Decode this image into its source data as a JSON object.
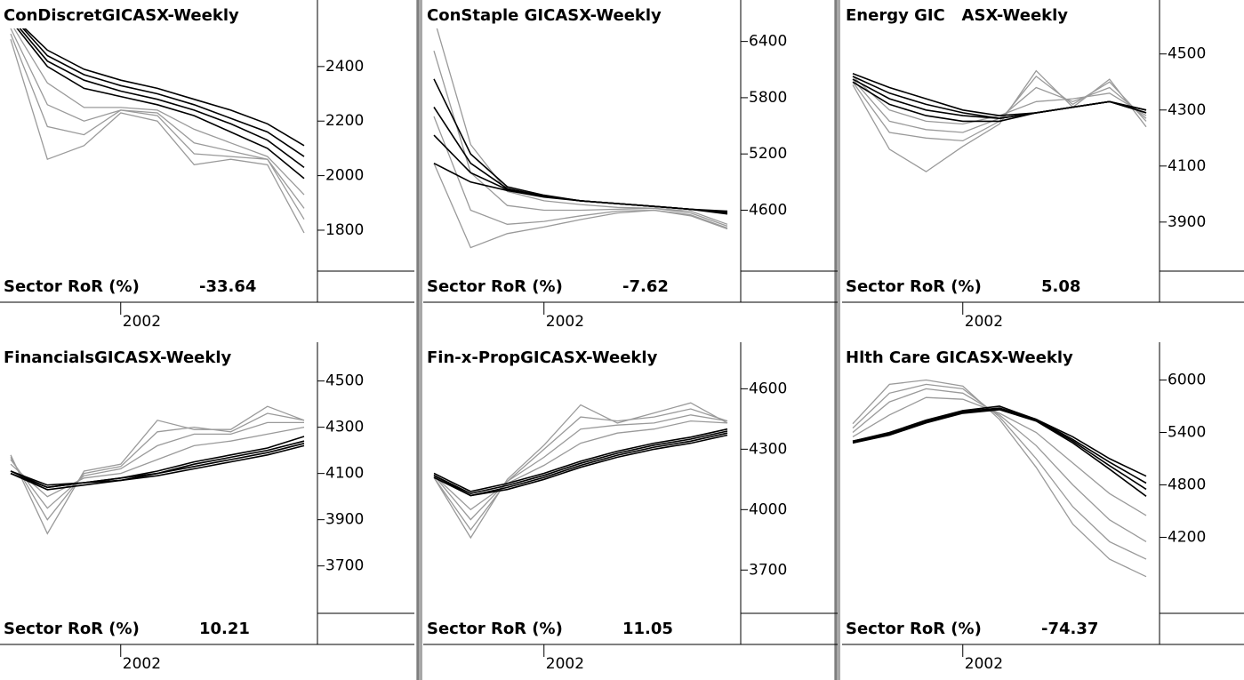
{
  "chart_data": [
    {
      "type": "line",
      "title": "ConDiscretGICASX-Weekly",
      "annotation": "Sector RoR (%)",
      "annotation_value": -33.64,
      "categories": [
        null,
        null,
        null,
        "2002",
        null,
        null,
        null,
        null,
        null
      ],
      "ylim": [
        1650,
        2595
      ],
      "yticks": [
        2400,
        2200,
        2000,
        1800
      ],
      "series": [
        {
          "color": "#9a9a9a",
          "values": [
            2500,
            2060,
            2110,
            2230,
            2200,
            2040,
            2060,
            2040,
            1790
          ]
        },
        {
          "color": "#9a9a9a",
          "values": [
            2520,
            2180,
            2150,
            2240,
            2220,
            2080,
            2070,
            2060,
            1840
          ]
        },
        {
          "color": "#9a9a9a",
          "values": [
            2540,
            2260,
            2200,
            2240,
            2230,
            2120,
            2090,
            2060,
            1880
          ]
        },
        {
          "color": "#9a9a9a",
          "values": [
            2560,
            2340,
            2250,
            2250,
            2240,
            2170,
            2120,
            2070,
            1930
          ]
        },
        {
          "color": "#000000",
          "values": [
            2570,
            2400,
            2320,
            2290,
            2260,
            2220,
            2160,
            2100,
            1990
          ]
        },
        {
          "color": "#000000",
          "values": [
            2580,
            2420,
            2350,
            2310,
            2280,
            2240,
            2190,
            2130,
            2030
          ]
        },
        {
          "color": "#000000",
          "values": [
            2590,
            2440,
            2370,
            2330,
            2300,
            2260,
            2210,
            2160,
            2070
          ]
        },
        {
          "color": "#000000",
          "values": [
            2590,
            2460,
            2390,
            2350,
            2320,
            2280,
            2240,
            2190,
            2110
          ]
        }
      ]
    },
    {
      "type": "line",
      "title": "ConStaple GICASX-Weekly",
      "annotation": "Sector RoR (%)",
      "annotation_value": -7.62,
      "categories": [
        null,
        null,
        null,
        "2002",
        null,
        null,
        null,
        null,
        null
      ],
      "ylim": [
        3950,
        6700
      ],
      "yticks": [
        6400,
        5800,
        5200,
        4600
      ],
      "series": [
        {
          "color": "#9a9a9a",
          "values": [
            5100,
            4200,
            4350,
            4420,
            4500,
            4570,
            4600,
            4540,
            4400
          ]
        },
        {
          "color": "#9a9a9a",
          "values": [
            5600,
            4600,
            4450,
            4480,
            4540,
            4590,
            4600,
            4550,
            4410
          ]
        },
        {
          "color": "#9a9a9a",
          "values": [
            6300,
            5000,
            4650,
            4600,
            4600,
            4610,
            4620,
            4570,
            4430
          ]
        },
        {
          "color": "#9a9a9a",
          "values": [
            6650,
            5300,
            4800,
            4700,
            4660,
            4630,
            4620,
            4590,
            4450
          ]
        },
        {
          "color": "#000000",
          "values": [
            5100,
            4900,
            4810,
            4740,
            4700,
            4670,
            4640,
            4610,
            4590
          ]
        },
        {
          "color": "#000000",
          "values": [
            5400,
            5000,
            4820,
            4750,
            4700,
            4670,
            4640,
            4610,
            4580
          ]
        },
        {
          "color": "#000000",
          "values": [
            5700,
            5100,
            4830,
            4750,
            4700,
            4670,
            4640,
            4610,
            4570
          ]
        },
        {
          "color": "#000000",
          "values": [
            6000,
            5200,
            4850,
            4760,
            4700,
            4670,
            4640,
            4610,
            4560
          ]
        }
      ]
    },
    {
      "type": "line",
      "title": "Energy GIC   ASX-Weekly",
      "annotation": "Sector RoR (%)",
      "annotation_value": 5.08,
      "categories": [
        null,
        null,
        null,
        "2002",
        null,
        null,
        null,
        null,
        null
      ],
      "ylim": [
        3725,
        4645
      ],
      "yticks": [
        4500,
        4300,
        4100,
        3900
      ],
      "series": [
        {
          "color": "#9a9a9a",
          "values": [
            4390,
            4160,
            4080,
            4170,
            4250,
            4440,
            4310,
            4410,
            4240
          ]
        },
        {
          "color": "#9a9a9a",
          "values": [
            4400,
            4220,
            4200,
            4190,
            4260,
            4420,
            4320,
            4400,
            4260
          ]
        },
        {
          "color": "#9a9a9a",
          "values": [
            4410,
            4260,
            4230,
            4220,
            4270,
            4380,
            4330,
            4380,
            4270
          ]
        },
        {
          "color": "#9a9a9a",
          "values": [
            4420,
            4300,
            4260,
            4250,
            4280,
            4330,
            4340,
            4360,
            4280
          ]
        },
        {
          "color": "#000000",
          "values": [
            4400,
            4320,
            4280,
            4260,
            4260,
            4290,
            4310,
            4330,
            4290
          ]
        },
        {
          "color": "#000000",
          "values": [
            4410,
            4340,
            4300,
            4280,
            4270,
            4290,
            4310,
            4330,
            4290
          ]
        },
        {
          "color": "#000000",
          "values": [
            4420,
            4360,
            4320,
            4290,
            4270,
            4290,
            4310,
            4330,
            4300
          ]
        },
        {
          "color": "#000000",
          "values": [
            4430,
            4380,
            4340,
            4300,
            4280,
            4290,
            4310,
            4330,
            4300
          ]
        }
      ]
    },
    {
      "type": "line",
      "title": "FinancialsGICASX-Weekly",
      "annotation": "Sector RoR (%)",
      "annotation_value": 10.21,
      "categories": [
        null,
        null,
        null,
        "2002",
        null,
        null,
        null,
        null,
        null
      ],
      "ylim": [
        3495,
        4610
      ],
      "yticks": [
        4500,
        4300,
        4100,
        3900,
        3700
      ],
      "series": [
        {
          "color": "#9a9a9a",
          "values": [
            4180,
            3840,
            4110,
            4140,
            4330,
            4290,
            4290,
            4390,
            4330
          ]
        },
        {
          "color": "#9a9a9a",
          "values": [
            4170,
            3900,
            4100,
            4130,
            4280,
            4300,
            4280,
            4360,
            4330
          ]
        },
        {
          "color": "#9a9a9a",
          "values": [
            4160,
            3950,
            4090,
            4120,
            4220,
            4270,
            4270,
            4320,
            4320
          ]
        },
        {
          "color": "#9a9a9a",
          "values": [
            4140,
            4000,
            4080,
            4100,
            4160,
            4220,
            4240,
            4270,
            4300
          ]
        },
        {
          "color": "#000000",
          "values": [
            4100,
            4030,
            4050,
            4070,
            4090,
            4120,
            4150,
            4180,
            4220
          ]
        },
        {
          "color": "#000000",
          "values": [
            4100,
            4040,
            4060,
            4070,
            4100,
            4130,
            4160,
            4190,
            4230
          ]
        },
        {
          "color": "#000000",
          "values": [
            4110,
            4040,
            4060,
            4080,
            4100,
            4140,
            4170,
            4200,
            4240
          ]
        },
        {
          "color": "#000000",
          "values": [
            4110,
            4050,
            4060,
            4080,
            4110,
            4150,
            4180,
            4210,
            4260
          ]
        }
      ]
    },
    {
      "type": "line",
      "title": "Fin-x-PropGICASX-Weekly",
      "annotation": "Sector RoR (%)",
      "annotation_value": 11.05,
      "categories": [
        null,
        null,
        null,
        "2002",
        null,
        null,
        null,
        null,
        null
      ],
      "ylim": [
        3485,
        4765
      ],
      "yticks": [
        4600,
        4300,
        4000,
        3700
      ],
      "series": [
        {
          "color": "#9a9a9a",
          "values": [
            4160,
            3860,
            4150,
            4320,
            4520,
            4430,
            4480,
            4530,
            4430
          ]
        },
        {
          "color": "#9a9a9a",
          "values": [
            4160,
            3900,
            4140,
            4300,
            4460,
            4440,
            4460,
            4500,
            4440
          ]
        },
        {
          "color": "#9a9a9a",
          "values": [
            4170,
            3950,
            4140,
            4260,
            4400,
            4420,
            4430,
            4470,
            4440
          ]
        },
        {
          "color": "#9a9a9a",
          "values": [
            4170,
            4000,
            4130,
            4220,
            4330,
            4380,
            4400,
            4440,
            4430
          ]
        },
        {
          "color": "#000000",
          "values": [
            4160,
            4070,
            4100,
            4150,
            4210,
            4260,
            4300,
            4330,
            4370
          ]
        },
        {
          "color": "#000000",
          "values": [
            4170,
            4070,
            4110,
            4160,
            4220,
            4270,
            4310,
            4340,
            4380
          ]
        },
        {
          "color": "#000000",
          "values": [
            4170,
            4080,
            4120,
            4170,
            4230,
            4280,
            4320,
            4350,
            4390
          ]
        },
        {
          "color": "#000000",
          "values": [
            4180,
            4090,
            4130,
            4180,
            4240,
            4290,
            4330,
            4360,
            4400
          ]
        }
      ]
    },
    {
      "type": "line",
      "title": "Hlth Care GICASX-Weekly",
      "annotation": "Sector RoR (%)",
      "annotation_value": -74.37,
      "categories": [
        null,
        null,
        null,
        "2002",
        null,
        null,
        null,
        null,
        null
      ],
      "ylim": [
        3330,
        6280
      ],
      "yticks": [
        6000,
        5400,
        4800,
        4200
      ],
      "series": [
        {
          "color": "#9a9a9a",
          "values": [
            5500,
            5950,
            6000,
            5930,
            5550,
            5000,
            4350,
            3950,
            3750
          ]
        },
        {
          "color": "#9a9a9a",
          "values": [
            5450,
            5850,
            5950,
            5900,
            5580,
            5100,
            4550,
            4150,
            3950
          ]
        },
        {
          "color": "#9a9a9a",
          "values": [
            5400,
            5750,
            5900,
            5850,
            5600,
            5250,
            4800,
            4400,
            4150
          ]
        },
        {
          "color": "#9a9a9a",
          "values": [
            5350,
            5600,
            5800,
            5780,
            5620,
            5400,
            5050,
            4700,
            4450
          ]
        },
        {
          "color": "#000000",
          "values": [
            5280,
            5370,
            5510,
            5620,
            5660,
            5530,
            5280,
            4980,
            4670
          ]
        },
        {
          "color": "#000000",
          "values": [
            5290,
            5380,
            5520,
            5630,
            5670,
            5540,
            5300,
            5020,
            4750
          ]
        },
        {
          "color": "#000000",
          "values": [
            5300,
            5390,
            5530,
            5640,
            5680,
            5550,
            5320,
            5060,
            4820
          ]
        },
        {
          "color": "#000000",
          "values": [
            5300,
            5400,
            5540,
            5650,
            5700,
            5550,
            5350,
            5100,
            4900
          ]
        }
      ]
    }
  ]
}
